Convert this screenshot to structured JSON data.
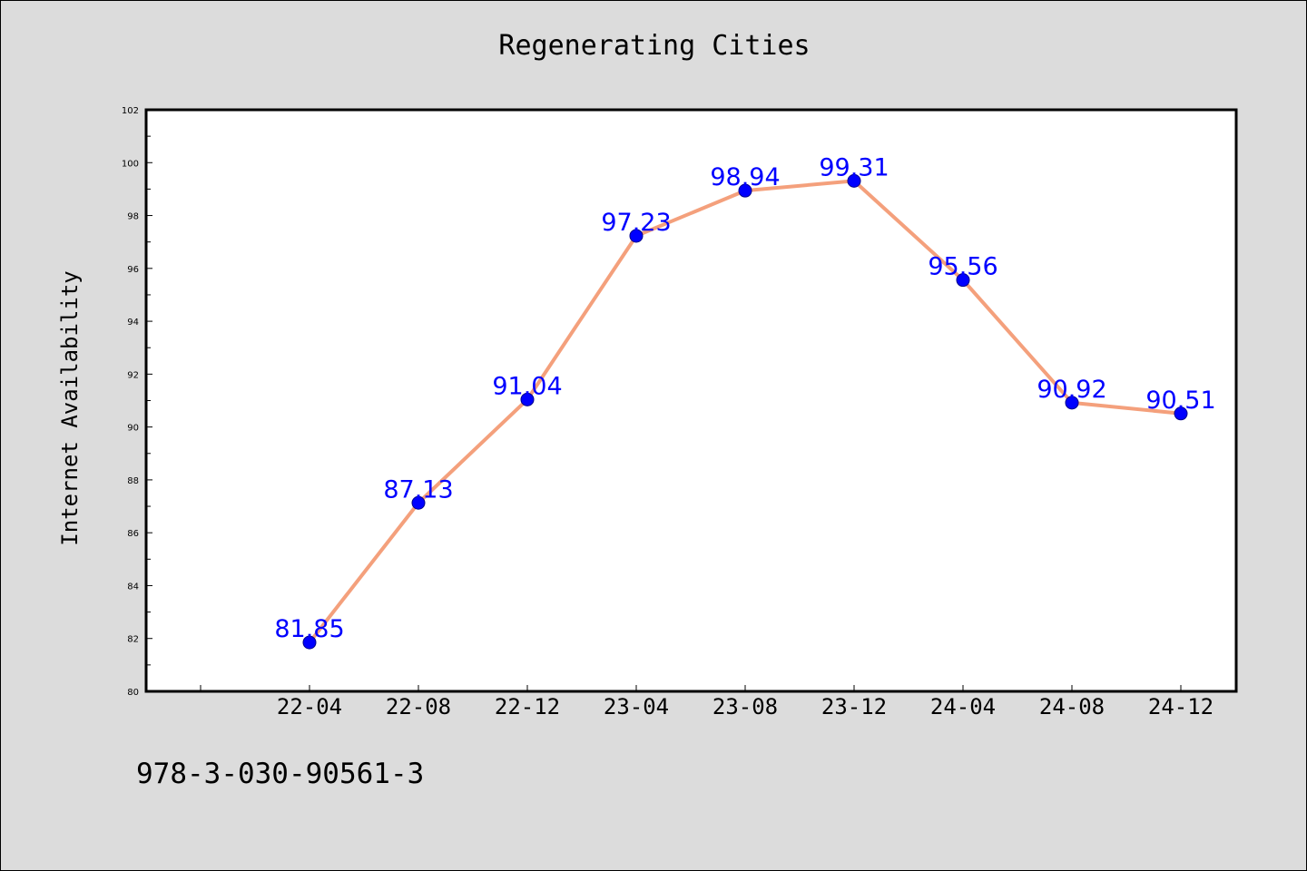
{
  "chart_data": {
    "type": "line",
    "title": "Regenerating Cities",
    "xlabel": "",
    "ylabel": "Internet Availability",
    "categories": [
      "22-04",
      "22-08",
      "22-12",
      "23-04",
      "23-08",
      "23-12",
      "24-04",
      "24-08",
      "24-12"
    ],
    "values": [
      81.85,
      87.13,
      91.04,
      97.23,
      98.94,
      99.31,
      95.56,
      90.92,
      90.51
    ],
    "data_labels": [
      "81.85",
      "87.13",
      "91.04",
      "97.23",
      "98.94",
      "99.31",
      "95.56",
      "90.92",
      "90.51"
    ],
    "ylim": [
      80,
      102
    ],
    "yticks": [
      80,
      82,
      84,
      86,
      88,
      90,
      92,
      94,
      96,
      98,
      100,
      102
    ],
    "grid": false,
    "colors": {
      "line": "#f4a07c",
      "marker": "#0000ff",
      "data_label": "#0000ff",
      "plot_background": "#ffffff",
      "figure_background": "#dcdcdc"
    }
  },
  "footer_text": "978-3-030-90561-3"
}
